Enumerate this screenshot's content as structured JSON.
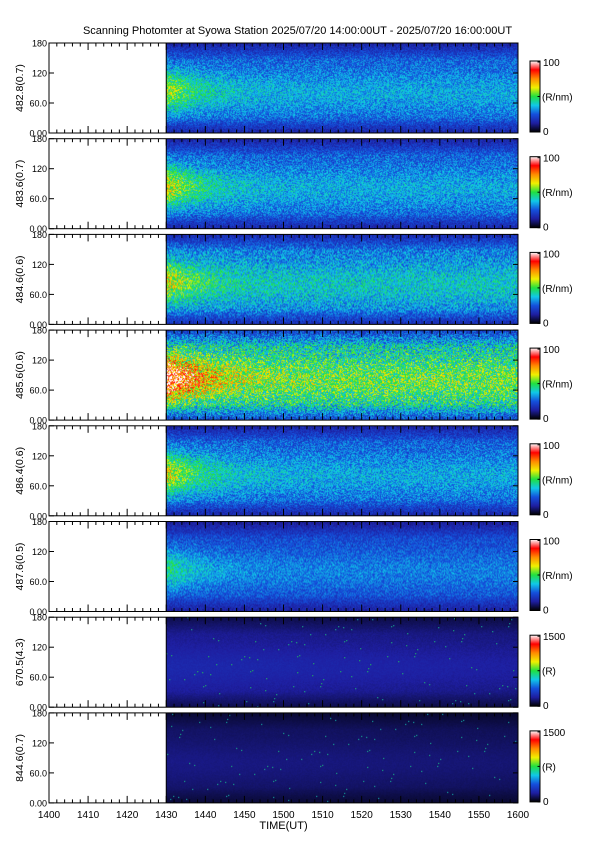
{
  "title": "Scanning Photomter at Syowa Station 2025/07/20 14:00:00UT - 2025/07/20 16:00:00UT",
  "chart_data": {
    "type": "heatmap",
    "xlabel": "TIME(UT)",
    "x_ticks": [
      "1400",
      "1410",
      "1420",
      "1430",
      "1440",
      "1450",
      "1500",
      "1510",
      "1520",
      "1530",
      "1540",
      "1550",
      "1600"
    ],
    "xlim_minutes": [
      0,
      120
    ],
    "data_start_minute": 30,
    "y_ticks": [
      "0.00",
      "60.0",
      "120",
      "180"
    ],
    "ylim": [
      0,
      180
    ],
    "colormap": [
      "#000000",
      "#1e1ea0",
      "#1450dc",
      "#10c8e8",
      "#20e040",
      "#f0f000",
      "#ff8c00",
      "#ff0000",
      "#ffffff"
    ],
    "panels": [
      {
        "label": "482.8(0.7)",
        "unit": "(R/nm)",
        "cmax": "100",
        "cmin": "0",
        "level": 0.3,
        "burst": 0.45,
        "noise": 0.55
      },
      {
        "label": "483.6(0.7)",
        "unit": "(R/nm)",
        "cmax": "100",
        "cmin": "0",
        "level": 0.3,
        "burst": 0.55,
        "noise": 0.55
      },
      {
        "label": "484.6(0.6)",
        "unit": "(R/nm)",
        "cmax": "100",
        "cmin": "0",
        "level": 0.34,
        "burst": 0.45,
        "noise": 0.6
      },
      {
        "label": "485.6(0.6)",
        "unit": "(R/nm)",
        "cmax": "100",
        "cmin": "0",
        "level": 0.46,
        "burst": 0.95,
        "noise": 0.7
      },
      {
        "label": "486.4(0.6)",
        "unit": "(R/nm)",
        "cmax": "100",
        "cmin": "0",
        "level": 0.3,
        "burst": 0.55,
        "noise": 0.55
      },
      {
        "label": "487.6(0.5)",
        "unit": "(R/nm)",
        "cmax": "100",
        "cmin": "0",
        "level": 0.26,
        "burst": 0.3,
        "noise": 0.5
      },
      {
        "label": "670.5(4.3)",
        "unit": "(R)",
        "cmax": "1500",
        "cmin": "0",
        "level": 0.13,
        "burst": 0.0,
        "noise": 0.15
      },
      {
        "label": "844.6(0.7)",
        "unit": "(R)",
        "cmax": "1500",
        "cmin": "0",
        "level": 0.09,
        "burst": 0.0,
        "noise": 0.12
      }
    ]
  }
}
